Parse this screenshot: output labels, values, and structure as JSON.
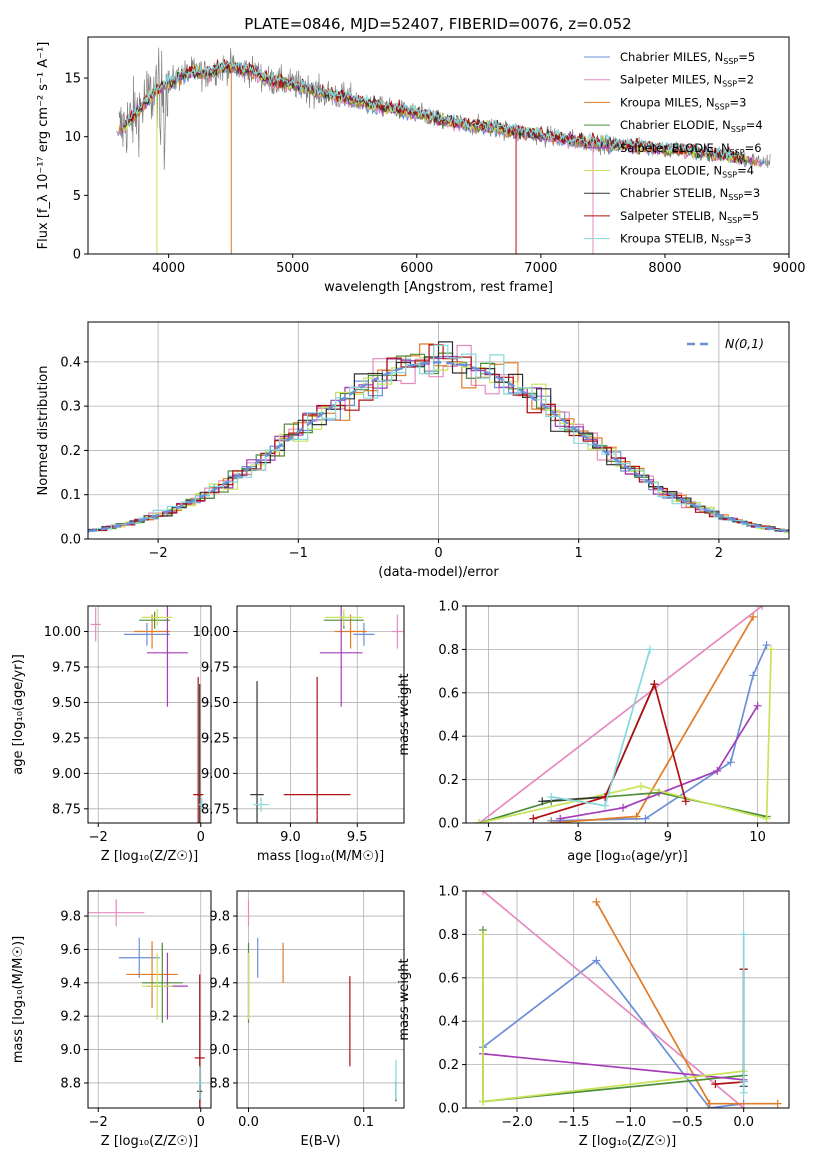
{
  "figure": {
    "title": "PLATE=0846, MJD=52407, FIBERID=0076, z=0.052"
  },
  "fit_colors": [
    "#6b8fd9",
    "#e58ac0",
    "#e07b28",
    "#4e8f3a",
    "#a43cb8",
    "#c8e35a",
    "#333333",
    "#b01010",
    "#86d8dc"
  ],
  "chart_data": [
    {
      "id": "spectrum",
      "type": "line",
      "xlabel": "wavelength [Angstrom, rest frame]",
      "ylabel": "Flux [f_λ 10⁻¹⁷ erg cm⁻² s⁻¹ A⁻¹]",
      "xlim": [
        3350,
        9000
      ],
      "ylim": [
        0,
        18.5
      ],
      "xticks": [
        4000,
        5000,
        6000,
        7000,
        8000,
        9000
      ],
      "yticks": [
        0,
        5,
        10,
        15
      ],
      "grid": false,
      "legend_position": "top-right",
      "observed_continuum": {
        "x": [
          3600,
          3700,
          3800,
          3900,
          4000,
          4100,
          4200,
          4300,
          4400,
          4500,
          4600,
          4700,
          4800,
          5000,
          5200,
          5400,
          5600,
          5800,
          6000,
          6200,
          6400,
          6600,
          6800,
          7000,
          7200,
          7400,
          7600,
          7800,
          8000,
          8200,
          8400,
          8600,
          8800
        ],
        "y": [
          10.5,
          11.5,
          12.8,
          14.0,
          14.5,
          15.2,
          15.6,
          15.3,
          15.8,
          16.0,
          15.7,
          15.5,
          14.8,
          14.5,
          13.8,
          13.4,
          12.8,
          12.4,
          12.0,
          11.4,
          11.0,
          10.8,
          10.4,
          10.1,
          9.8,
          9.5,
          9.3,
          9.2,
          9.0,
          8.8,
          8.5,
          8.2,
          7.8
        ]
      },
      "series": [
        {
          "label": "Chabrier MILES, N",
          "sub": "SSP",
          "suffix": "=5"
        },
        {
          "label": "Salpeter MILES, N",
          "sub": "SSP",
          "suffix": "=2"
        },
        {
          "label": "Kroupa MILES, N",
          "sub": "SSP",
          "suffix": "=3"
        },
        {
          "label": "Chabrier ELODIE, N",
          "sub": "SSP",
          "suffix": "=4"
        },
        {
          "label": "Salpeter ELODIE, N",
          "sub": "SSP",
          "suffix": "=6"
        },
        {
          "label": "Kroupa ELODIE, N",
          "sub": "SSP",
          "suffix": "=4"
        },
        {
          "label": "Chabrier STELIB, N",
          "sub": "SSP",
          "suffix": "=3"
        },
        {
          "label": "Salpeter STELIB, N",
          "sub": "SSP",
          "suffix": "=5"
        },
        {
          "label": "Kroupa STELIB, N",
          "sub": "SSP",
          "suffix": "=3"
        }
      ]
    },
    {
      "id": "residuals",
      "type": "step",
      "xlabel": "(data-model)/error",
      "ylabel": "Normed distribution",
      "xlim": [
        -2.5,
        2.5
      ],
      "ylim": [
        0,
        0.49
      ],
      "xticks": [
        -2,
        -1,
        0,
        1,
        2
      ],
      "yticks": [
        0.0,
        0.1,
        0.2,
        0.3,
        0.4
      ],
      "grid": true,
      "legend_position": "top-right",
      "gaussian_label": "N(0,1)",
      "gaussian_mu": 0,
      "gaussian_sigma": 1
    },
    {
      "id": "age_vs_Z",
      "type": "errorbar",
      "xlabel": "Z [log₁₀(Z/Z☉)]",
      "ylabel": "age  [log₁₀(age/yr)]",
      "xlim": [
        -2.2,
        0.2
      ],
      "ylim": [
        8.65,
        10.18
      ],
      "xticks": [
        -2,
        0
      ],
      "yticks": [
        8.75,
        9.0,
        9.25,
        9.5,
        9.75,
        10.0
      ],
      "grid": true,
      "points": [
        {
          "c": 0,
          "x": -1.05,
          "xerr": 0.45,
          "y": 9.98,
          "yerr": 0.08
        },
        {
          "c": 1,
          "x": -2.05,
          "xerr": 0.1,
          "y": 10.05,
          "yerr": 0.12
        },
        {
          "c": 2,
          "x": -0.95,
          "xerr": 0.35,
          "y": 10.0,
          "yerr": 0.12
        },
        {
          "c": 3,
          "x": -0.9,
          "xerr": 0.3,
          "y": 10.08,
          "yerr": 0.06
        },
        {
          "c": 4,
          "x": -0.65,
          "xerr": 0.4,
          "y": 9.85,
          "yerr": 0.38
        },
        {
          "c": 5,
          "x": -0.85,
          "xerr": 0.3,
          "y": 10.1,
          "yerr": 0.06
        },
        {
          "c": 6,
          "x": -0.02,
          "xerr": 0.05,
          "y": 8.85,
          "yerr": 0.78
        },
        {
          "c": 7,
          "x": -0.05,
          "xerr": 0.1,
          "y": 8.85,
          "yerr": 0.83
        },
        {
          "c": 8,
          "x": 0.02,
          "xerr": 0.06,
          "y": 8.78,
          "yerr": 0.05
        }
      ]
    },
    {
      "id": "age_vs_mass",
      "type": "errorbar",
      "xlabel": "mass [log₁₀(M/M☉)]",
      "ylabel": "",
      "xlim": [
        8.6,
        9.85
      ],
      "ylim": [
        8.65,
        10.18
      ],
      "xticks": [
        9.0,
        9.5
      ],
      "yticks": [
        8.75,
        9.0,
        9.25,
        9.5,
        9.75,
        10.0
      ],
      "grid": true,
      "points": [
        {
          "c": 0,
          "x": 9.55,
          "xerr": 0.08,
          "y": 9.98,
          "yerr": 0.08
        },
        {
          "c": 1,
          "x": 9.8,
          "xerr": 0.04,
          "y": 10.0,
          "yerr": 0.12
        },
        {
          "c": 2,
          "x": 9.45,
          "xerr": 0.12,
          "y": 10.0,
          "yerr": 0.12
        },
        {
          "c": 3,
          "x": 9.4,
          "xerr": 0.15,
          "y": 10.08,
          "yerr": 0.06
        },
        {
          "c": 4,
          "x": 9.38,
          "xerr": 0.16,
          "y": 9.85,
          "yerr": 0.38
        },
        {
          "c": 5,
          "x": 9.4,
          "xerr": 0.14,
          "y": 10.1,
          "yerr": 0.06
        },
        {
          "c": 6,
          "x": 8.75,
          "xerr": 0.05,
          "y": 8.85,
          "yerr": 0.8
        },
        {
          "c": 7,
          "x": 9.2,
          "xerr": 0.25,
          "y": 8.85,
          "yerr": 0.83
        },
        {
          "c": 8,
          "x": 8.78,
          "xerr": 0.06,
          "y": 8.78,
          "yerr": 0.05
        }
      ]
    },
    {
      "id": "weight_vs_age",
      "type": "line",
      "xlabel": "age  [log₁₀(age/yr)]",
      "ylabel": "mass weight",
      "xlim": [
        6.75,
        10.35
      ],
      "ylim": [
        0,
        1
      ],
      "xticks": [
        7,
        8,
        9,
        10
      ],
      "yticks": [
        0.0,
        0.2,
        0.4,
        0.6,
        0.8,
        1.0
      ],
      "grid": true,
      "series": [
        {
          "c": 0,
          "x": [
            7.7,
            8.75,
            9.7,
            9.95,
            10.1
          ],
          "y": [
            0.01,
            0.02,
            0.28,
            0.68,
            0.82
          ]
        },
        {
          "c": 1,
          "x": [
            6.9,
            10.05
          ],
          "y": [
            0.0,
            1.0
          ]
        },
        {
          "c": 2,
          "x": [
            7.7,
            8.65,
            9.95
          ],
          "y": [
            0.0,
            0.03,
            0.95
          ]
        },
        {
          "c": 3,
          "x": [
            6.9,
            7.7,
            8.9,
            10.1
          ],
          "y": [
            0.0,
            0.1,
            0.14,
            0.03
          ]
        },
        {
          "c": 4,
          "x": [
            7.8,
            8.5,
            9.55,
            10.0
          ],
          "y": [
            0.02,
            0.07,
            0.24,
            0.54
          ]
        },
        {
          "c": 5,
          "x": [
            6.9,
            8.7,
            10.1,
            10.15
          ],
          "y": [
            0.0,
            0.17,
            0.02,
            0.8
          ]
        },
        {
          "c": 6,
          "x": [
            7.6,
            8.3,
            8.85
          ],
          "y": [
            0.1,
            0.12,
            0.64
          ]
        },
        {
          "c": 7,
          "x": [
            7.5,
            8.3,
            8.85,
            9.2
          ],
          "y": [
            0.02,
            0.12,
            0.64,
            0.1
          ]
        },
        {
          "c": 8,
          "x": [
            7.7,
            8.3,
            8.8
          ],
          "y": [
            0.12,
            0.08,
            0.8
          ]
        }
      ]
    },
    {
      "id": "mass_vs_Z",
      "type": "errorbar",
      "xlabel": "Z [log₁₀(Z/Z☉)]",
      "ylabel": "mass [log₁₀(M/M☉)]",
      "xlim": [
        -2.2,
        0.2
      ],
      "ylim": [
        8.65,
        9.95
      ],
      "xticks": [
        -2,
        0
      ],
      "yticks": [
        8.8,
        9.0,
        9.2,
        9.4,
        9.6,
        9.8
      ],
      "grid": true,
      "points": [
        {
          "c": 0,
          "x": -1.2,
          "xerr": 0.4,
          "y": 9.55,
          "yerr": 0.12
        },
        {
          "c": 1,
          "x": -1.65,
          "xerr": 0.55,
          "y": 9.82,
          "yerr": 0.08
        },
        {
          "c": 2,
          "x": -0.95,
          "xerr": 0.5,
          "y": 9.45,
          "yerr": 0.2
        },
        {
          "c": 3,
          "x": -0.75,
          "xerr": 0.4,
          "y": 9.4,
          "yerr": 0.24
        },
        {
          "c": 4,
          "x": -0.65,
          "xerr": 0.4,
          "y": 9.38,
          "yerr": 0.2
        },
        {
          "c": 5,
          "x": -0.85,
          "xerr": 0.3,
          "y": 9.38,
          "yerr": 0.2
        },
        {
          "c": 6,
          "x": -0.02,
          "xerr": 0.05,
          "y": 8.75,
          "yerr": 0.06
        },
        {
          "c": 7,
          "x": -0.02,
          "xerr": 0.1,
          "y": 8.95,
          "yerr": 0.5
        },
        {
          "c": 8,
          "x": -0.02,
          "xerr": 0.06,
          "y": 8.8,
          "yerr": 0.1
        }
      ]
    },
    {
      "id": "mass_vs_ebv",
      "type": "errorbar",
      "xlabel": "E(B-V)",
      "ylabel": "",
      "xlim": [
        -0.01,
        0.135
      ],
      "ylim": [
        8.65,
        9.95
      ],
      "xticks": [
        0.0,
        0.1
      ],
      "yticks": [
        8.8,
        9.0,
        9.2,
        9.4,
        9.6,
        9.8
      ],
      "grid": true,
      "points": [
        {
          "c": 0,
          "x": 0.008,
          "xerr": 0,
          "y": 9.55,
          "yerr": 0.12
        },
        {
          "c": 1,
          "x": 0.0,
          "xerr": 0,
          "y": 9.82,
          "yerr": 0.08
        },
        {
          "c": 2,
          "x": 0.03,
          "xerr": 0,
          "y": 9.52,
          "yerr": 0.12
        },
        {
          "c": 3,
          "x": 0.0,
          "xerr": 0,
          "y": 9.4,
          "yerr": 0.24
        },
        {
          "c": 4,
          "x": 0.0,
          "xerr": 0,
          "y": 9.38,
          "yerr": 0.2
        },
        {
          "c": 5,
          "x": 0.0,
          "xerr": 0,
          "y": 9.38,
          "yerr": 0.2
        },
        {
          "c": 6,
          "x": 0.128,
          "xerr": 0,
          "y": 8.75,
          "yerr": 0.06
        },
        {
          "c": 7,
          "x": 0.088,
          "xerr": 0,
          "y": 9.17,
          "yerr": 0.27
        },
        {
          "c": 8,
          "x": 0.128,
          "xerr": 0,
          "y": 8.82,
          "yerr": 0.12
        }
      ]
    },
    {
      "id": "weight_vs_Z",
      "type": "line",
      "xlabel": "Z [log₁₀(Z/Z☉)]",
      "ylabel": "mass weight",
      "xlim": [
        -2.45,
        0.4
      ],
      "ylim": [
        0,
        1
      ],
      "xticks": [
        -2.0,
        -1.5,
        -1.0,
        -0.5,
        0.0
      ],
      "yticks": [
        0.0,
        0.2,
        0.4,
        0.6,
        0.8,
        1.0
      ],
      "grid": true,
      "series": [
        {
          "c": 0,
          "x": [
            -2.3,
            -1.3,
            -0.3,
            0.0
          ],
          "y": [
            0.28,
            0.68,
            0.0,
            0.02
          ]
        },
        {
          "c": 1,
          "x": [
            -2.3,
            0.0
          ],
          "y": [
            1.0,
            0.0
          ]
        },
        {
          "c": 2,
          "x": [
            -1.3,
            -0.3,
            0.3
          ],
          "y": [
            0.95,
            0.02,
            0.02
          ]
        },
        {
          "c": 3,
          "x": [
            -2.3,
            -2.3,
            0.0
          ],
          "y": [
            0.82,
            0.03,
            0.15
          ]
        },
        {
          "c": 4,
          "x": [
            -2.3,
            0.0
          ],
          "y": [
            0.25,
            0.13
          ]
        },
        {
          "c": 5,
          "x": [
            -2.3,
            -2.3,
            0.0
          ],
          "y": [
            0.8,
            0.03,
            0.17
          ]
        },
        {
          "c": 6,
          "x": [
            0.0,
            0.0,
            0.0
          ],
          "y": [
            0.64,
            0.12,
            0.1
          ]
        },
        {
          "c": 7,
          "x": [
            -0.25,
            0.0,
            0.0
          ],
          "y": [
            0.11,
            0.12,
            0.64
          ]
        },
        {
          "c": 8,
          "x": [
            0.0,
            0.0,
            0.0
          ],
          "y": [
            0.8,
            0.12,
            0.07
          ]
        }
      ]
    }
  ]
}
